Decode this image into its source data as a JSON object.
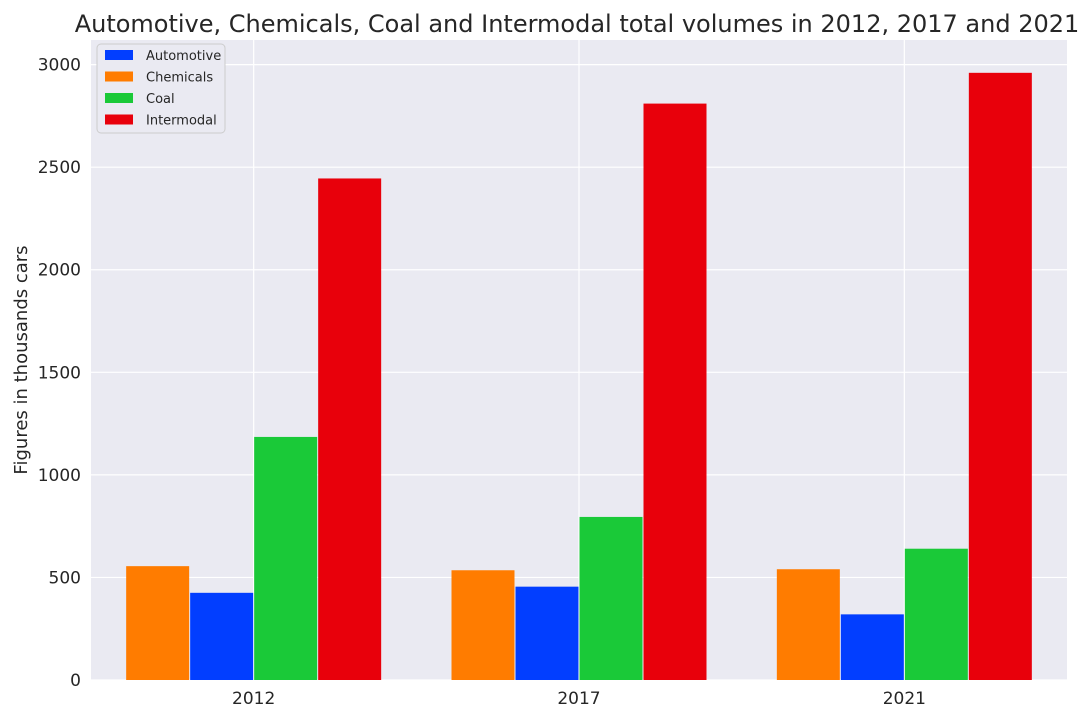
{
  "chart_data": {
    "type": "bar",
    "title": "Automotive, Chemicals, Coal and Intermodal total volumes in 2012, 2017 and 2021",
    "xlabel": "",
    "ylabel": "Figures in thousands cars",
    "categories": [
      "2012",
      "2017",
      "2021"
    ],
    "ylim": [
      0,
      3120
    ],
    "yticks": [
      0,
      500,
      1000,
      1500,
      2000,
      2500,
      3000
    ],
    "grid": true,
    "legend_position": "top-left",
    "draw_order": [
      "Chemicals",
      "Automotive",
      "Coal",
      "Intermodal"
    ],
    "series": [
      {
        "name": "Automotive",
        "color": "#023eff",
        "values": [
          425,
          455,
          320
        ]
      },
      {
        "name": "Chemicals",
        "color": "#ff7c00",
        "values": [
          555,
          535,
          540
        ]
      },
      {
        "name": "Coal",
        "color": "#1ac938",
        "values": [
          1185,
          795,
          640
        ]
      },
      {
        "name": "Intermodal",
        "color": "#e8000b",
        "values": [
          2445,
          2810,
          2960
        ]
      }
    ]
  }
}
